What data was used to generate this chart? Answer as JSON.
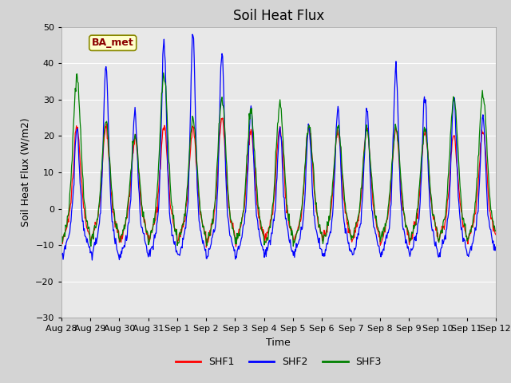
{
  "title": "Soil Heat Flux",
  "xlabel": "Time",
  "ylabel": "Soil Heat Flux (W/m2)",
  "ylim": [
    -30,
    50
  ],
  "series": [
    "SHF1",
    "SHF2",
    "SHF3"
  ],
  "colors": [
    "red",
    "blue",
    "green"
  ],
  "annotation_text": "BA_met",
  "annotation_bg": "#ffffcc",
  "annotation_border": "#888800",
  "x_tick_labels": [
    "Aug 28",
    "Aug 29",
    "Aug 30",
    "Aug 31",
    "Sep 1",
    "Sep 2",
    "Sep 3",
    "Sep 4",
    "Sep 5",
    "Sep 6",
    "Sep 7",
    "Sep 8",
    "Sep 9",
    "Sep 10",
    "Sep 11",
    "Sep 12"
  ],
  "yticks": [
    -30,
    -20,
    -10,
    0,
    10,
    20,
    30,
    40,
    50
  ],
  "title_fontsize": 12,
  "label_fontsize": 9,
  "tick_fontsize": 8,
  "fig_bg": "#d4d4d4",
  "plot_bg": "#e8e8e8",
  "grid_color": "#ffffff",
  "n_days": 15,
  "pts_per_day": 48,
  "night_level": -13.0,
  "night_noise": 2.5,
  "shf1_day_peaks": [
    22,
    22,
    19,
    23,
    22,
    25,
    21,
    22,
    23,
    21,
    22,
    22,
    21,
    20,
    21
  ],
  "shf2_day_peaks": [
    22,
    40,
    27,
    46,
    48,
    43,
    27,
    22,
    23,
    28,
    27,
    39,
    31,
    31,
    25
  ],
  "shf3_day_peaks": [
    36,
    24,
    20,
    37,
    25,
    30,
    27,
    29,
    23,
    22,
    21,
    22,
    21,
    30,
    31
  ],
  "peak_sharpness": 0.12,
  "legend_fontsize": 9
}
